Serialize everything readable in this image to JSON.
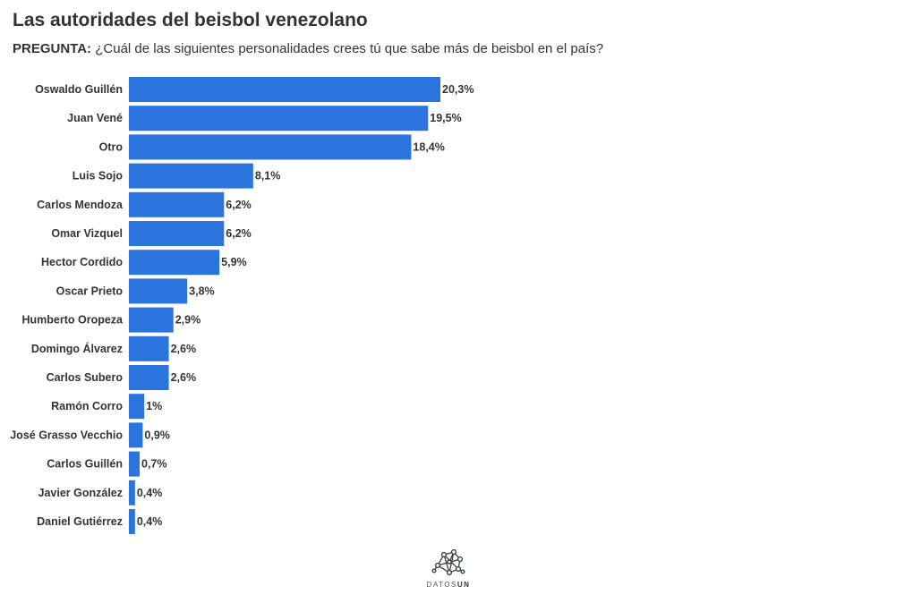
{
  "header": {
    "title": "Las autoridades del beisbol venezolano",
    "question_label": "PREGUNTA:",
    "question_text": "¿Cuál de las siguientes personalidades crees tú que sabe más de beisbol en el país?"
  },
  "colors": {
    "bar": "#2b74de",
    "text": "#333333"
  },
  "chart_data": {
    "type": "bar",
    "orientation": "horizontal",
    "title": "Las autoridades del beisbol venezolano",
    "categories": [
      "Oswaldo Guillén",
      "Juan Vené",
      "Otro",
      "Luis Sojo",
      "Carlos Mendoza",
      "Omar Vizquel",
      "Hector Cordido",
      "Oscar Prieto",
      "Humberto Oropeza",
      "Domingo Álvarez",
      "Carlos Subero",
      "Ramón Corro",
      "José Grasso Vecchio",
      "Carlos Guillén",
      "Javier González",
      "Daniel Gutiérrez"
    ],
    "values": [
      20.3,
      19.5,
      18.4,
      8.1,
      6.2,
      6.2,
      5.9,
      3.8,
      2.9,
      2.6,
      2.6,
      1,
      0.9,
      0.7,
      0.4,
      0.4
    ],
    "value_labels": [
      "20,3%",
      "19,5%",
      "18,4%",
      "8,1%",
      "6,2%",
      "6,2%",
      "5,9%",
      "3,8%",
      "2,9%",
      "2,6%",
      "2,6%",
      "1%",
      "0,9%",
      "0,7%",
      "0,4%",
      "0,4%"
    ],
    "unit": "%",
    "xlim": [
      0,
      20.3
    ],
    "xlabel": "",
    "ylabel": "",
    "grid": false,
    "legend": "none"
  },
  "footer": {
    "logo_icon": "network-icon",
    "logo_text_a": "DATOS",
    "logo_text_b": "UN"
  }
}
